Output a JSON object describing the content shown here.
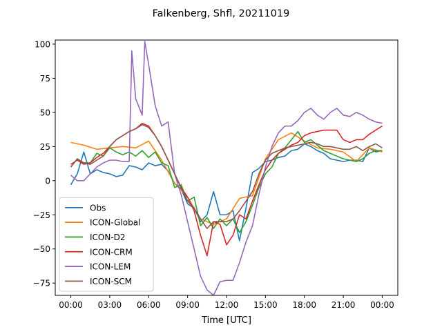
{
  "chart_data": {
    "type": "line",
    "title": "Falkenberg, Shfl, 20211019",
    "xlabel": "Time [UTC]",
    "ylabel": "",
    "xlim": [
      -1.2,
      25.2
    ],
    "ylim": [
      -84,
      103
    ],
    "x_ticks": [
      {
        "value": 0,
        "label": "00:00"
      },
      {
        "value": 3,
        "label": "03:00"
      },
      {
        "value": 6,
        "label": "06:00"
      },
      {
        "value": 9,
        "label": "09:00"
      },
      {
        "value": 12,
        "label": "12:00"
      },
      {
        "value": 15,
        "label": "15:00"
      },
      {
        "value": 18,
        "label": "18:00"
      },
      {
        "value": 21,
        "label": "21:00"
      },
      {
        "value": 24,
        "label": "00:00"
      }
    ],
    "y_ticks": [
      {
        "value": -75,
        "label": "−75"
      },
      {
        "value": -50,
        "label": "−50"
      },
      {
        "value": -25,
        "label": "−25"
      },
      {
        "value": 0,
        "label": "0"
      },
      {
        "value": 25,
        "label": "25"
      },
      {
        "value": 50,
        "label": "50"
      },
      {
        "value": 75,
        "label": "75"
      },
      {
        "value": 100,
        "label": "100"
      }
    ],
    "grid": false,
    "legend_position": "lower-left",
    "series": [
      {
        "name": "Obs",
        "color": "#1f77b4",
        "points": [
          [
            0,
            -3
          ],
          [
            0.5,
            5
          ],
          [
            1,
            21
          ],
          [
            1.5,
            5
          ],
          [
            2,
            8
          ],
          [
            2.5,
            6
          ],
          [
            3,
            5
          ],
          [
            3.5,
            3
          ],
          [
            4,
            4
          ],
          [
            4.5,
            11
          ],
          [
            5,
            10
          ],
          [
            5.5,
            8
          ],
          [
            6,
            13
          ],
          [
            6.5,
            11
          ],
          [
            7,
            12
          ],
          [
            7.5,
            7
          ],
          [
            8,
            -2
          ],
          [
            8.5,
            -6
          ],
          [
            9,
            -17
          ],
          [
            9.5,
            -20
          ],
          [
            10,
            -30
          ],
          [
            10.5,
            -25
          ],
          [
            11,
            -8
          ],
          [
            11.5,
            -25
          ],
          [
            12,
            -25
          ],
          [
            12.5,
            -22
          ],
          [
            13,
            -44
          ],
          [
            13.5,
            -20
          ],
          [
            14,
            6
          ],
          [
            14.5,
            9
          ],
          [
            15,
            14
          ],
          [
            15.5,
            15
          ],
          [
            16,
            17
          ],
          [
            16.5,
            18
          ],
          [
            17,
            22
          ],
          [
            17.5,
            23
          ],
          [
            18,
            27
          ],
          [
            18.5,
            25
          ],
          [
            19,
            22
          ],
          [
            19.5,
            20
          ],
          [
            20,
            16
          ],
          [
            20.5,
            15
          ],
          [
            21,
            14
          ],
          [
            21.5,
            15
          ],
          [
            22,
            15
          ],
          [
            22.5,
            14
          ],
          [
            23,
            24
          ],
          [
            23.5,
            21
          ],
          [
            24,
            22
          ]
        ]
      },
      {
        "name": "ICON-Global",
        "color": "#ff7f0e",
        "points": [
          [
            0,
            28
          ],
          [
            1,
            26
          ],
          [
            2,
            23
          ],
          [
            3,
            24
          ],
          [
            4,
            25
          ],
          [
            5,
            24
          ],
          [
            6,
            29
          ],
          [
            7,
            15
          ],
          [
            8,
            -2
          ],
          [
            9,
            -12
          ],
          [
            10,
            -28
          ],
          [
            11,
            -32
          ],
          [
            12,
            -28
          ],
          [
            13,
            -13
          ],
          [
            14,
            -11
          ],
          [
            15,
            16
          ],
          [
            16,
            30
          ],
          [
            17,
            35
          ],
          [
            18,
            29
          ],
          [
            19,
            24
          ],
          [
            20,
            23
          ],
          [
            21,
            21
          ],
          [
            22,
            14
          ],
          [
            23,
            24
          ],
          [
            24,
            21
          ]
        ]
      },
      {
        "name": "ICON-D2",
        "color": "#2ca02c",
        "points": [
          [
            0,
            10
          ],
          [
            0.5,
            16
          ],
          [
            1,
            13
          ],
          [
            1.5,
            13
          ],
          [
            2,
            20
          ],
          [
            2.5,
            18
          ],
          [
            3,
            24
          ],
          [
            3.5,
            21
          ],
          [
            4,
            19
          ],
          [
            4.5,
            21
          ],
          [
            5,
            18
          ],
          [
            5.5,
            22
          ],
          [
            6,
            17
          ],
          [
            6.5,
            21
          ],
          [
            7,
            13
          ],
          [
            7.5,
            11
          ],
          [
            8,
            -5
          ],
          [
            8.5,
            -3
          ],
          [
            9,
            -15
          ],
          [
            9.5,
            -12
          ],
          [
            10,
            -33
          ],
          [
            10.5,
            -27
          ],
          [
            11,
            -35
          ],
          [
            11.5,
            -28
          ],
          [
            12,
            -33
          ],
          [
            12.5,
            -28
          ],
          [
            13,
            -38
          ],
          [
            13.5,
            -30
          ],
          [
            14,
            -18
          ],
          [
            14.5,
            -5
          ],
          [
            15,
            5
          ],
          [
            15.5,
            10
          ],
          [
            16,
            20
          ],
          [
            16.5,
            24
          ],
          [
            17,
            30
          ],
          [
            17.5,
            36
          ],
          [
            18,
            28
          ],
          [
            18.5,
            30
          ],
          [
            19,
            26
          ],
          [
            19.5,
            22
          ],
          [
            20,
            20
          ],
          [
            20.5,
            18
          ],
          [
            21,
            16
          ],
          [
            21.5,
            15
          ],
          [
            22,
            14
          ],
          [
            22.5,
            16
          ],
          [
            23,
            20
          ],
          [
            23.5,
            22
          ],
          [
            24,
            22
          ]
        ]
      },
      {
        "name": "ICON-CRM",
        "color": "#d62728",
        "points": [
          [
            0,
            12
          ],
          [
            0.5,
            15
          ],
          [
            1,
            12
          ],
          [
            1.5,
            13
          ],
          [
            2,
            17
          ],
          [
            2.5,
            20
          ],
          [
            3,
            25
          ],
          [
            3.5,
            30
          ],
          [
            4,
            33
          ],
          [
            4.5,
            36
          ],
          [
            5,
            38
          ],
          [
            5.5,
            42
          ],
          [
            6,
            40
          ],
          [
            6.5,
            33
          ],
          [
            7,
            25
          ],
          [
            7.5,
            15
          ],
          [
            8,
            5
          ],
          [
            8.5,
            -5
          ],
          [
            9,
            -12
          ],
          [
            9.5,
            -22
          ],
          [
            10,
            -40
          ],
          [
            10.5,
            -55
          ],
          [
            11,
            -30
          ],
          [
            11.5,
            -32
          ],
          [
            12,
            -47
          ],
          [
            12.5,
            -40
          ],
          [
            13,
            -25
          ],
          [
            13.5,
            -28
          ],
          [
            14,
            -15
          ],
          [
            14.5,
            -3
          ],
          [
            15,
            8
          ],
          [
            15.5,
            15
          ],
          [
            16,
            20
          ],
          [
            16.5,
            23
          ],
          [
            17,
            26
          ],
          [
            17.5,
            28
          ],
          [
            18,
            33
          ],
          [
            18.5,
            35
          ],
          [
            19,
            36
          ],
          [
            19.5,
            37
          ],
          [
            20,
            37
          ],
          [
            20.5,
            37
          ],
          [
            21,
            30
          ],
          [
            21.5,
            28
          ],
          [
            22,
            30
          ],
          [
            22.5,
            30
          ],
          [
            23,
            34
          ],
          [
            23.5,
            37
          ],
          [
            24,
            40
          ]
        ]
      },
      {
        "name": "ICON-LEM",
        "color": "#9467bd",
        "points": [
          [
            0,
            4
          ],
          [
            0.5,
            0
          ],
          [
            1,
            0
          ],
          [
            1.5,
            5
          ],
          [
            2,
            10
          ],
          [
            2.5,
            13
          ],
          [
            3,
            15
          ],
          [
            3.5,
            15
          ],
          [
            4,
            14
          ],
          [
            4.5,
            14
          ],
          [
            4.7,
            95
          ],
          [
            5,
            60
          ],
          [
            5.5,
            48
          ],
          [
            5.7,
            102
          ],
          [
            6,
            85
          ],
          [
            6.5,
            55
          ],
          [
            7,
            40
          ],
          [
            7.5,
            43
          ],
          [
            8,
            5
          ],
          [
            8.5,
            -10
          ],
          [
            9,
            -30
          ],
          [
            9.5,
            -50
          ],
          [
            10,
            -70
          ],
          [
            10.5,
            -80
          ],
          [
            11,
            -84
          ],
          [
            11.5,
            -74
          ],
          [
            12,
            -73
          ],
          [
            12.5,
            -73
          ],
          [
            13,
            -60
          ],
          [
            13.5,
            -45
          ],
          [
            14,
            -33
          ],
          [
            14.5,
            -10
          ],
          [
            15,
            10
          ],
          [
            15.5,
            25
          ],
          [
            16,
            35
          ],
          [
            16.5,
            40
          ],
          [
            17,
            40
          ],
          [
            17.5,
            44
          ],
          [
            18,
            50
          ],
          [
            18.5,
            53
          ],
          [
            19,
            48
          ],
          [
            19.5,
            45
          ],
          [
            20,
            50
          ],
          [
            20.5,
            53
          ],
          [
            21,
            48
          ],
          [
            21.5,
            47
          ],
          [
            22,
            50
          ],
          [
            22.5,
            48
          ],
          [
            23,
            45
          ],
          [
            23.5,
            43
          ],
          [
            24,
            42
          ]
        ]
      },
      {
        "name": "ICON-SCM",
        "color": "#8c564b",
        "points": [
          [
            0,
            10
          ],
          [
            0.5,
            16
          ],
          [
            1,
            13
          ],
          [
            1.5,
            12
          ],
          [
            2,
            15
          ],
          [
            2.5,
            18
          ],
          [
            3,
            25
          ],
          [
            3.5,
            30
          ],
          [
            4,
            33
          ],
          [
            4.5,
            36
          ],
          [
            5,
            38
          ],
          [
            5.5,
            41
          ],
          [
            6,
            39
          ],
          [
            6.5,
            33
          ],
          [
            7,
            25
          ],
          [
            7.5,
            15
          ],
          [
            8,
            5
          ],
          [
            8.5,
            -5
          ],
          [
            9,
            -15
          ],
          [
            9.5,
            -20
          ],
          [
            10,
            -28
          ],
          [
            10.5,
            -35
          ],
          [
            11,
            -30
          ],
          [
            11.5,
            -30
          ],
          [
            12,
            -30
          ],
          [
            12.5,
            -28
          ],
          [
            13,
            -22
          ],
          [
            13.5,
            -15
          ],
          [
            14,
            -8
          ],
          [
            14.5,
            5
          ],
          [
            15,
            15
          ],
          [
            15.5,
            20
          ],
          [
            16,
            22
          ],
          [
            16.5,
            24
          ],
          [
            17,
            25
          ],
          [
            17.5,
            26
          ],
          [
            18,
            27
          ],
          [
            18.5,
            28
          ],
          [
            19,
            27
          ],
          [
            19.5,
            25
          ],
          [
            20,
            25
          ],
          [
            20.5,
            24
          ],
          [
            21,
            23
          ],
          [
            21.5,
            23
          ],
          [
            22,
            25
          ],
          [
            22.5,
            22
          ],
          [
            23,
            25
          ],
          [
            23.5,
            27
          ],
          [
            24,
            24
          ]
        ]
      }
    ]
  }
}
